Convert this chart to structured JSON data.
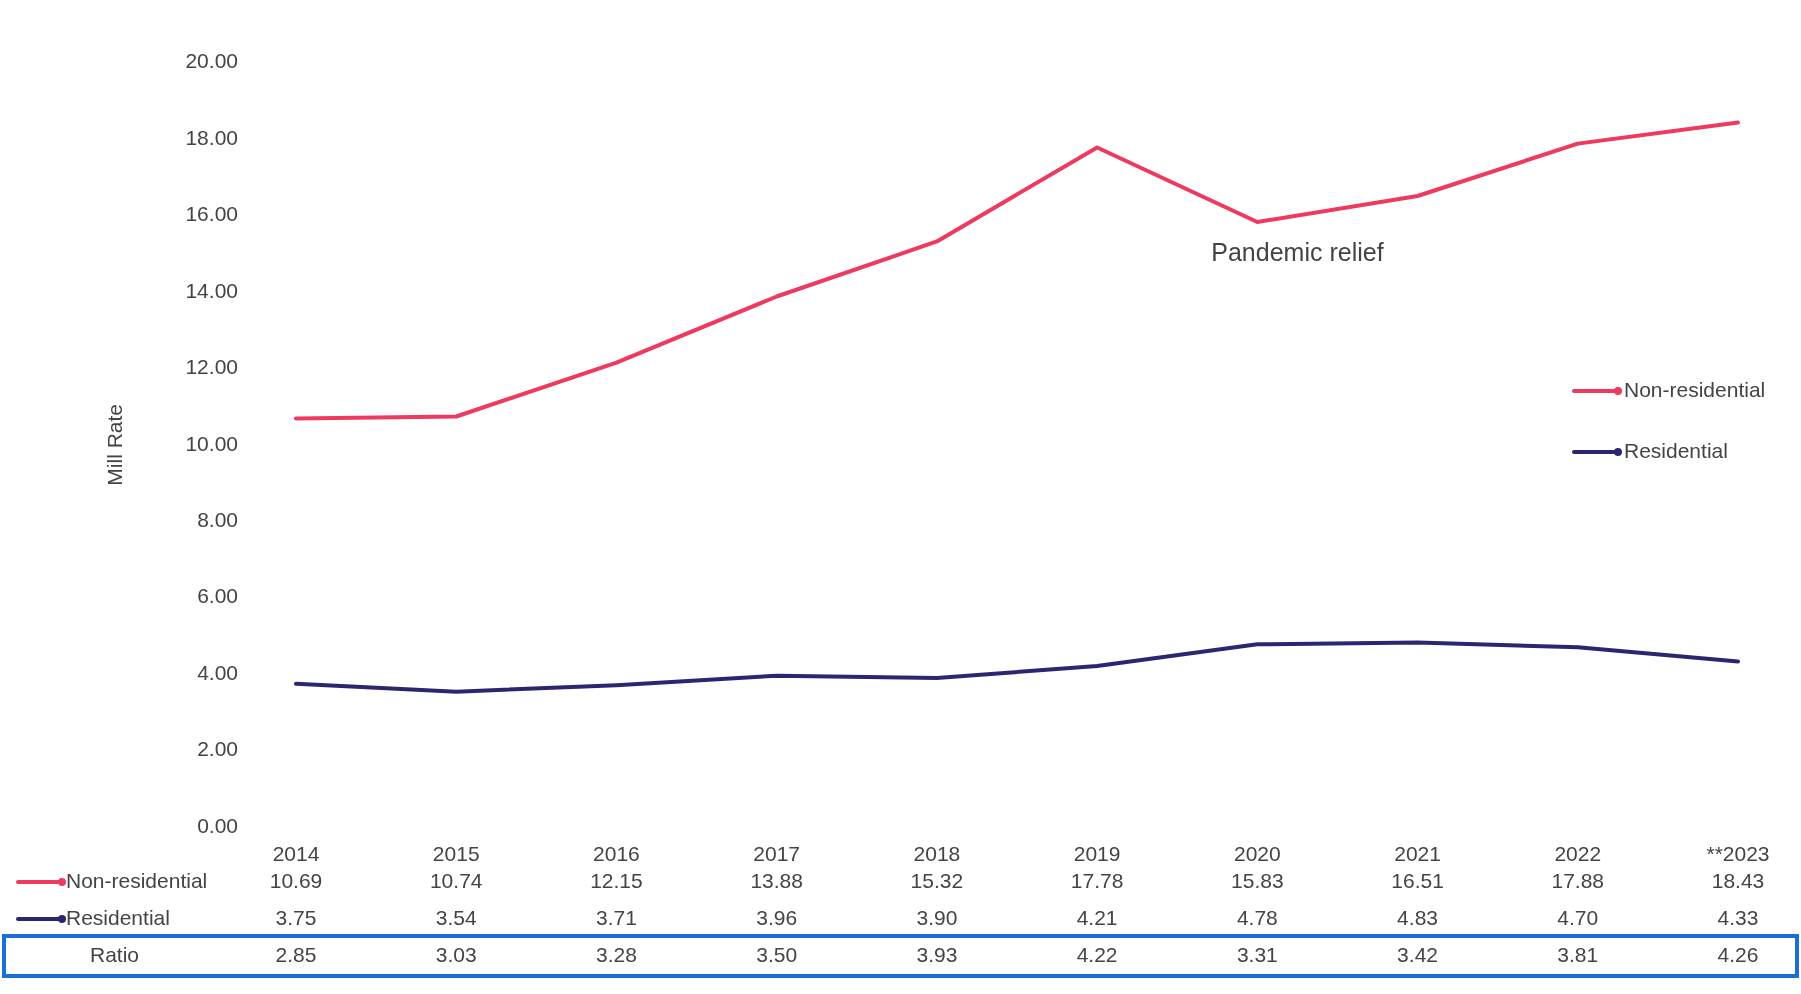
{
  "chart_data": {
    "type": "line",
    "ylabel": "Mill Rate",
    "categories": [
      "2014",
      "2015",
      "2016",
      "2017",
      "2018",
      "2019",
      "2020",
      "2021",
      "2022",
      "**2023"
    ],
    "series": [
      {
        "name": "Non-residential",
        "color": "#ee3a5e",
        "values": [
          10.69,
          10.74,
          12.15,
          13.88,
          15.32,
          17.78,
          15.83,
          16.51,
          17.88,
          18.43
        ],
        "value_labels": [
          "10.69",
          "10.74",
          "12.15",
          "13.88",
          "15.32",
          "17.78",
          "15.83",
          "16.51",
          "17.88",
          "18.43"
        ]
      },
      {
        "name": "Residential",
        "color": "#2a2670",
        "values": [
          3.75,
          3.54,
          3.71,
          3.96,
          3.9,
          4.21,
          4.78,
          4.83,
          4.7,
          4.33
        ],
        "value_labels": [
          "3.75",
          "3.54",
          "3.71",
          "3.96",
          "3.90",
          "4.21",
          "4.78",
          "4.83",
          "4.70",
          "4.33"
        ]
      }
    ],
    "ylim": [
      0,
      20
    ],
    "yticks": [
      {
        "value": 0,
        "label": "0.00"
      },
      {
        "value": 2,
        "label": "2.00"
      },
      {
        "value": 4,
        "label": "4.00"
      },
      {
        "value": 6,
        "label": "6.00"
      },
      {
        "value": 8,
        "label": "8.00"
      },
      {
        "value": 10,
        "label": "10.00"
      },
      {
        "value": 12,
        "label": "12.00"
      },
      {
        "value": 14,
        "label": "14.00"
      },
      {
        "value": 16,
        "label": "16.00"
      },
      {
        "value": 18,
        "label": "18.00"
      },
      {
        "value": 20,
        "label": "20.00"
      }
    ],
    "grid": false,
    "legend": "right",
    "marker": "none",
    "line_style": "solid",
    "annotations": [
      "Pandemic relief",
      "Ratio",
      "2.85",
      "3.03",
      "3.28",
      "3.50",
      "3.93",
      "4.22",
      "3.31",
      "3.42",
      "3.81",
      "4.26"
    ]
  }
}
